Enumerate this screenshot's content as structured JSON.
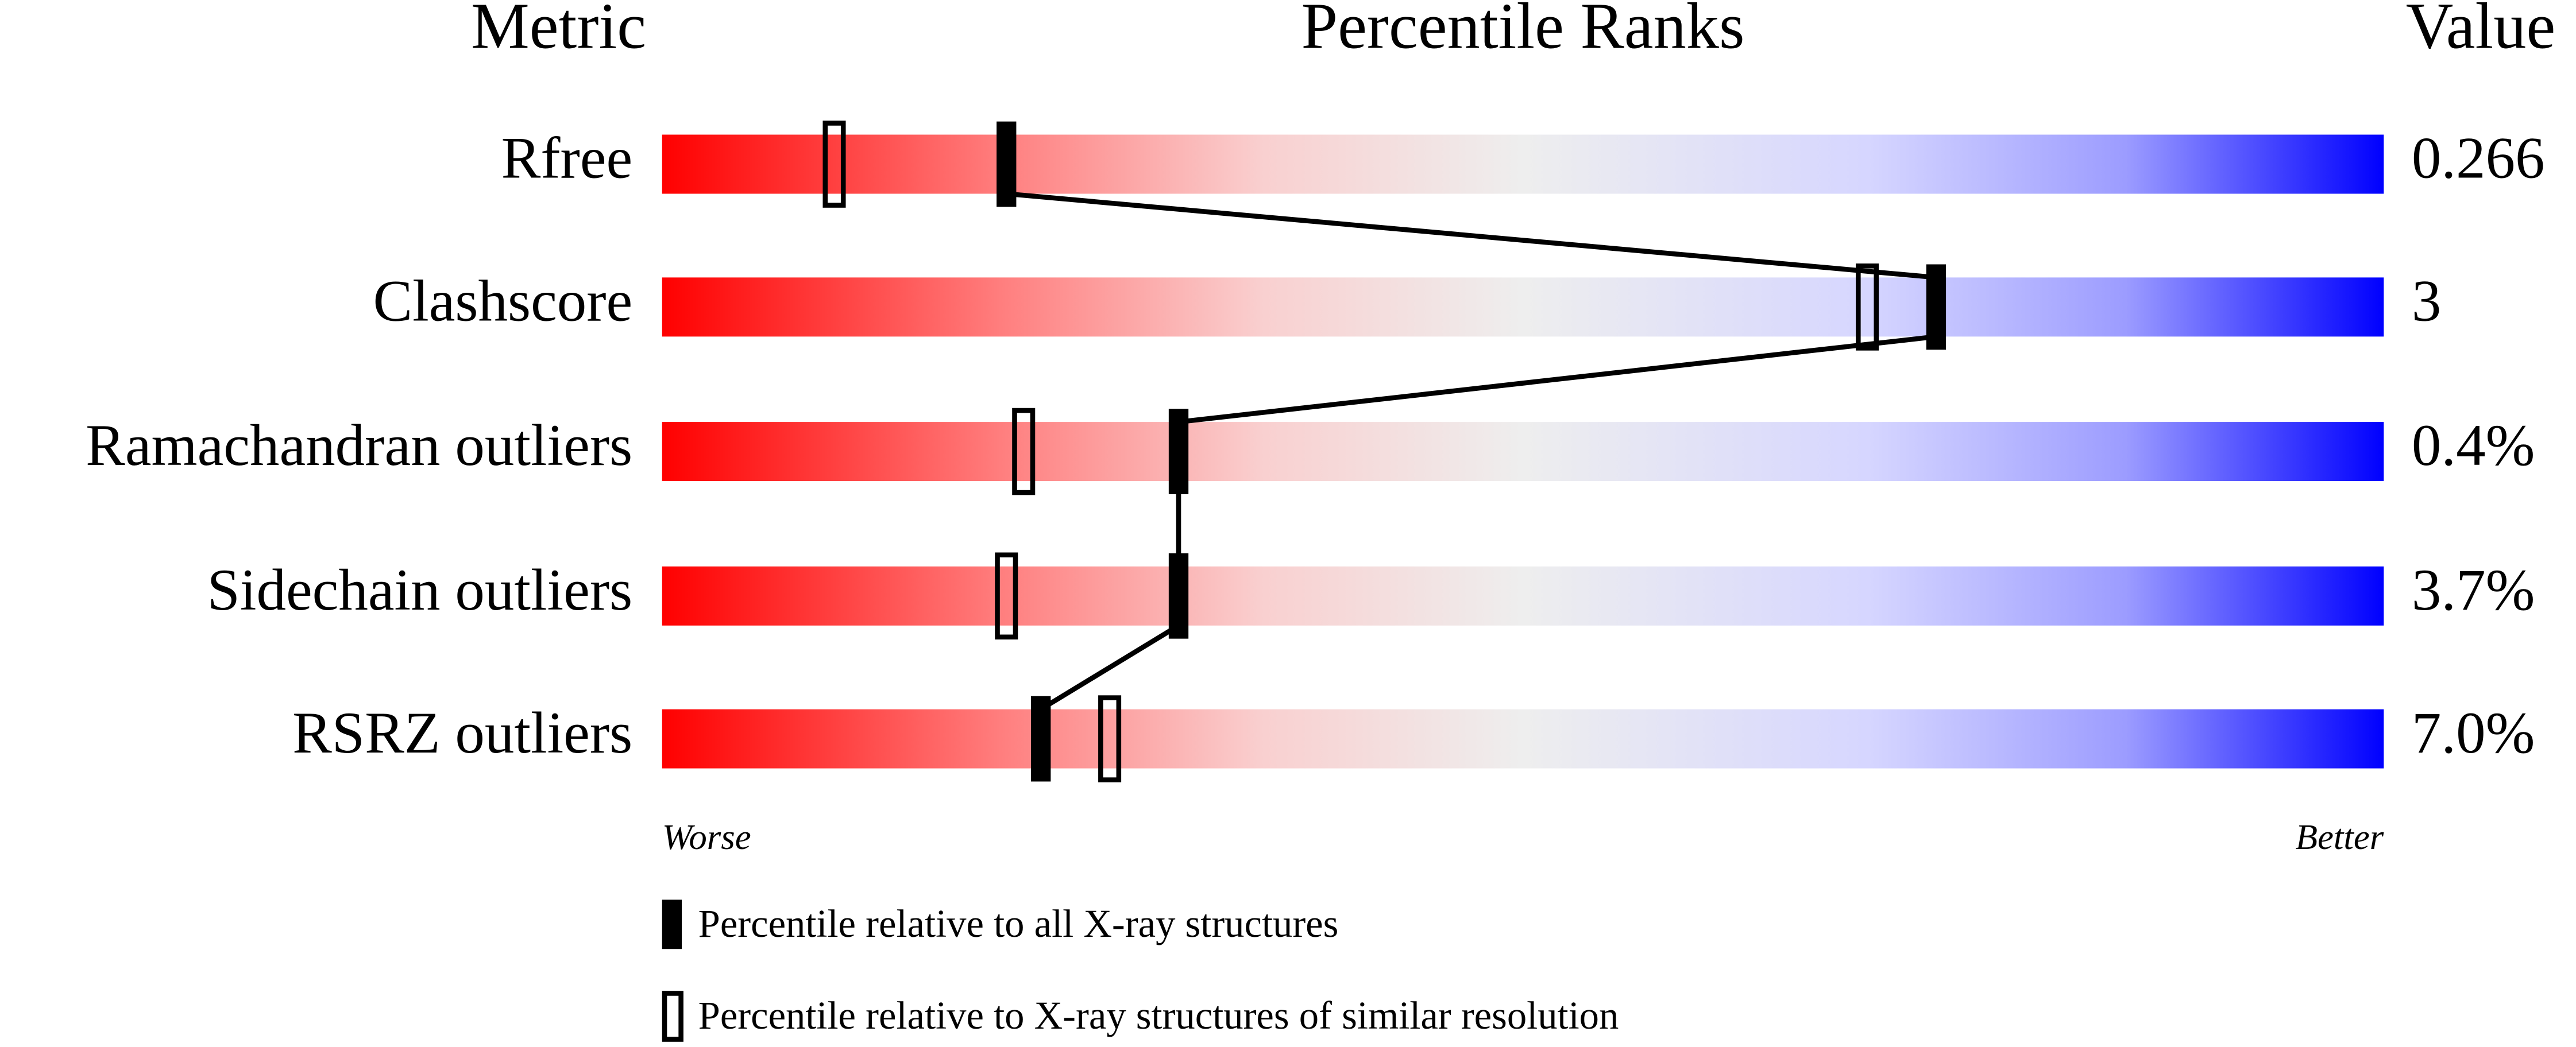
{
  "chart_data": {
    "type": "percentile-slider",
    "headers": [
      "Metric",
      "Percentile Ranks",
      "Value"
    ],
    "categories": [
      "Rfree",
      "Clashscore",
      "Ramachandran outliers",
      "Sidechain outliers",
      "RSRZ outliers"
    ],
    "metric_values": [
      "0.266",
      "3",
      "0.4%",
      "3.7%",
      "7.0%"
    ],
    "xlim": [
      0,
      100
    ],
    "axis_labels": [
      "Worse",
      "Better"
    ],
    "gradient": [
      "#ff0000",
      "#ff8080",
      "#f9d0d0",
      "#eeeeee",
      "#d6d6ff",
      "#9c9cff",
      "#0000ff"
    ],
    "series": [
      {
        "name": "Percentile relative to all X-ray structures",
        "style": "filled",
        "color": "#000000",
        "values": [
          20,
          74,
          30,
          30,
          22
        ]
      },
      {
        "name": "Percentile relative to X-ray structures of similar resolution",
        "style": "open",
        "color": "#000000",
        "values": [
          10,
          70,
          21,
          20,
          26
        ]
      }
    ]
  }
}
